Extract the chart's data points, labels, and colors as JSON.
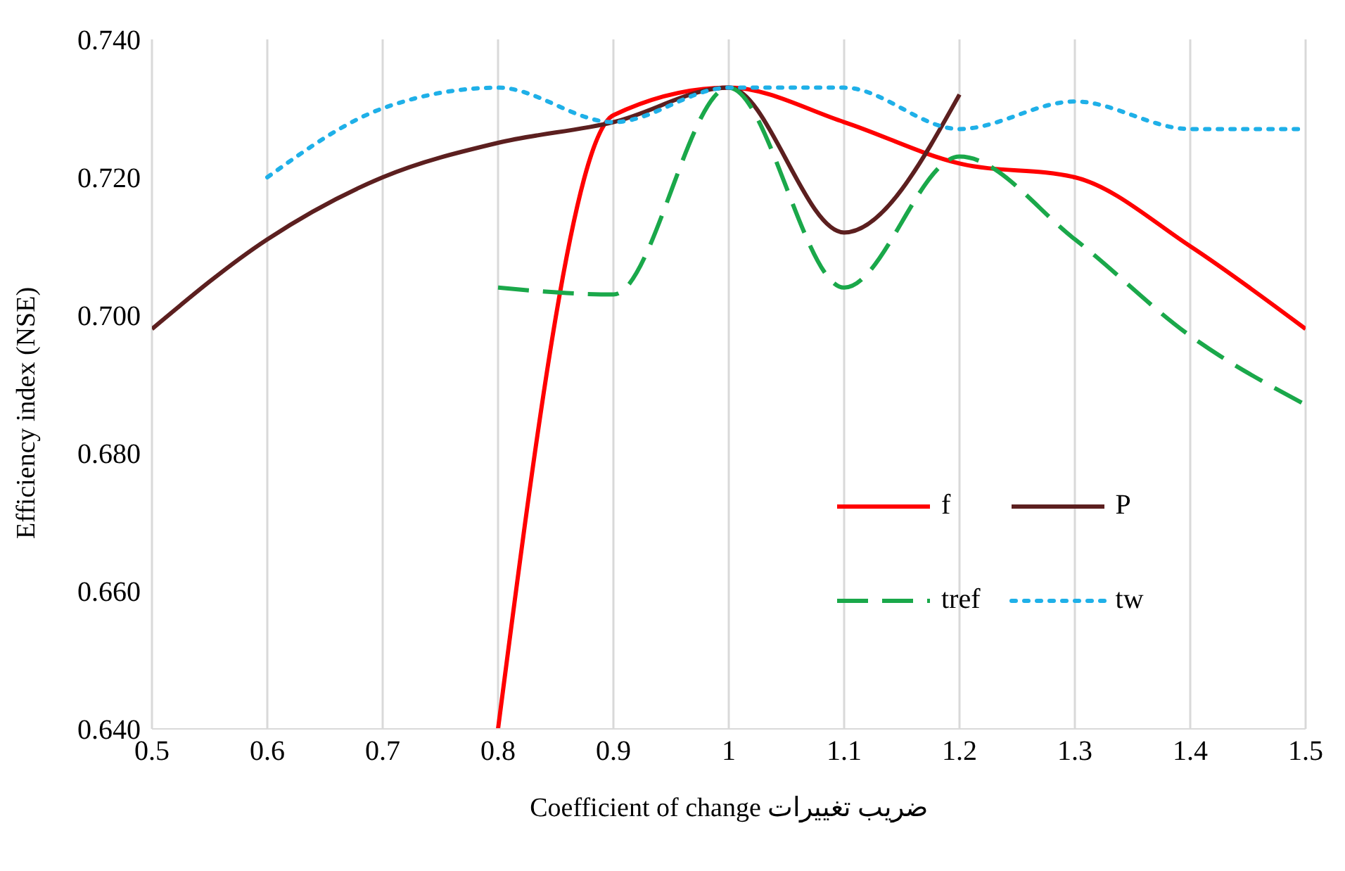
{
  "chart_data": {
    "type": "line",
    "xlabel": "Coefficient of change ضریب تغییرات",
    "ylabel": "Efficiency index (NSE)",
    "xlim": [
      0.5,
      1.5
    ],
    "xticks": [
      0.5,
      0.6,
      0.7,
      0.8,
      0.9,
      1,
      1.1,
      1.2,
      1.3,
      1.4,
      1.5
    ],
    "ylim": [
      0.64,
      0.74
    ],
    "yticks": [
      {
        "value": 0.64,
        "label": "0.640"
      },
      {
        "value": 0.66,
        "label": "0.660"
      },
      {
        "value": 0.68,
        "label": "0.680"
      },
      {
        "value": 0.7,
        "label": "0.700"
      },
      {
        "value": 0.72,
        "label": "0.720"
      },
      {
        "value": 0.74,
        "label": "0.740"
      }
    ],
    "grid": "x",
    "legend": "right",
    "marker": "none",
    "series": [
      {
        "name": "f",
        "color": "#ff0000",
        "line_style": "solid",
        "x": [
          0.8,
          0.9,
          1,
          1.1,
          1.2,
          1.3,
          1.4,
          1.5
        ],
        "values": [
          0.64,
          0.729,
          0.733,
          0.728,
          0.722,
          0.72,
          0.71,
          0.698
        ]
      },
      {
        "name": "P",
        "color": "#5c1f1f",
        "line_style": "solid",
        "x": [
          0.5,
          0.6,
          0.7,
          0.8,
          0.9,
          1,
          1.1,
          1.2
        ],
        "values": [
          0.698,
          0.711,
          0.72,
          0.725,
          0.728,
          0.733,
          0.712,
          0.732
        ]
      },
      {
        "name": "tref",
        "color": "#1aa84a",
        "line_style": "dashed",
        "x": [
          0.8,
          0.9,
          1,
          1.1,
          1.2,
          1.3,
          1.4,
          1.5
        ],
        "values": [
          0.704,
          0.703,
          0.733,
          0.704,
          0.723,
          0.711,
          0.697,
          0.687
        ]
      },
      {
        "name": "tw",
        "color": "#1fb0e8",
        "line_style": "dotted",
        "x": [
          0.6,
          0.7,
          0.8,
          0.9,
          1,
          1.1,
          1.2,
          1.3,
          1.4,
          1.5
        ],
        "values": [
          0.72,
          0.73,
          0.733,
          0.728,
          0.733,
          0.733,
          0.727,
          0.731,
          0.727,
          0.727
        ]
      }
    ]
  }
}
